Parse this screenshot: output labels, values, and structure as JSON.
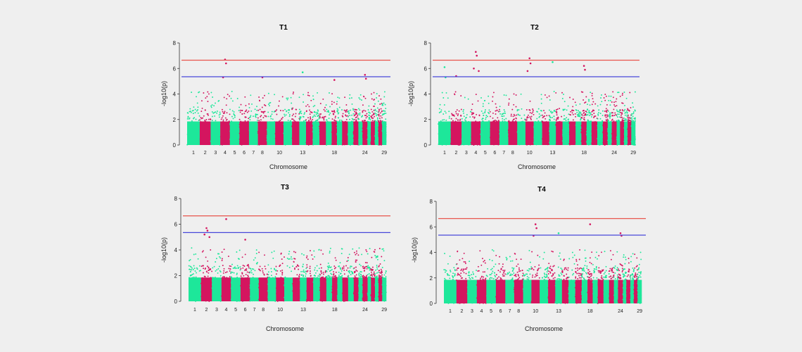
{
  "colors": {
    "background": "#efefef",
    "chr_odd": "#1de79a",
    "chr_even": "#d4155f",
    "genome_wide_line": "#e8544d",
    "suggestive_line": "#4747d9"
  },
  "chart_data": [
    {
      "type": "scatter",
      "subtype": "manhattan",
      "title": "T1",
      "xlabel": "Chromosome",
      "ylabel": "-log10(p)",
      "ylim": [
        0,
        8
      ],
      "yticks": [
        0,
        2,
        4,
        6,
        8
      ],
      "thresholds": [
        6.65,
        5.35
      ],
      "chromosome_labels": [
        "1",
        "2",
        "3",
        "4",
        "5",
        "6",
        "7",
        "8",
        "10",
        "13",
        "18",
        "24",
        "29"
      ],
      "peaks": [
        {
          "chromosome": "4",
          "values": [
            6.7,
            6.4,
            5.3
          ]
        },
        {
          "chromosome": "8",
          "values": [
            5.3
          ]
        },
        {
          "chromosome": "13",
          "values": [
            5.7
          ]
        },
        {
          "chromosome": "18",
          "values": [
            5.1
          ]
        },
        {
          "chromosome": "24",
          "values": [
            5.5,
            5.2
          ]
        }
      ]
    },
    {
      "type": "scatter",
      "subtype": "manhattan",
      "title": "T2",
      "xlabel": "Chromosome",
      "ylabel": "-log10(p)",
      "ylim": [
        0,
        8
      ],
      "yticks": [
        0,
        2,
        4,
        6,
        8
      ],
      "thresholds": [
        6.65,
        5.35
      ],
      "chromosome_labels": [
        "1",
        "2",
        "3",
        "4",
        "5",
        "6",
        "7",
        "8",
        "10",
        "13",
        "18",
        "24",
        "29"
      ],
      "peaks": [
        {
          "chromosome": "1",
          "values": [
            6.1,
            5.3
          ]
        },
        {
          "chromosome": "2",
          "values": [
            5.4
          ]
        },
        {
          "chromosome": "4",
          "values": [
            7.3,
            7.0,
            6.0,
            5.8
          ]
        },
        {
          "chromosome": "10",
          "values": [
            6.8,
            6.4,
            5.8
          ]
        },
        {
          "chromosome": "13",
          "values": [
            6.5
          ]
        },
        {
          "chromosome": "18",
          "values": [
            6.2,
            5.9
          ]
        }
      ]
    },
    {
      "type": "scatter",
      "subtype": "manhattan",
      "title": "T3",
      "xlabel": "Chromosome",
      "ylabel": "-log10(p)",
      "ylim": [
        0,
        8
      ],
      "yticks": [
        0,
        2,
        4,
        6,
        8
      ],
      "thresholds": [
        6.65,
        5.35
      ],
      "chromosome_labels": [
        "1",
        "2",
        "3",
        "4",
        "5",
        "6",
        "7",
        "8",
        "10",
        "13",
        "18",
        "24",
        "29"
      ],
      "peaks": [
        {
          "chromosome": "2",
          "values": [
            5.7,
            5.5,
            5.2,
            5.0
          ]
        },
        {
          "chromosome": "4",
          "values": [
            6.4
          ]
        },
        {
          "chromosome": "6",
          "values": [
            4.8
          ]
        }
      ]
    },
    {
      "type": "scatter",
      "subtype": "manhattan",
      "title": "T4",
      "xlabel": "Chromosome",
      "ylabel": "-log10(p)",
      "ylim": [
        0,
        8
      ],
      "yticks": [
        0,
        2,
        4,
        6,
        8
      ],
      "thresholds": [
        6.65,
        5.35
      ],
      "chromosome_labels": [
        "1",
        "2",
        "3",
        "4",
        "5",
        "6",
        "7",
        "8",
        "10",
        "13",
        "18",
        "24",
        "29"
      ],
      "peaks": [
        {
          "chromosome": "10",
          "values": [
            6.2,
            5.9,
            5.3
          ]
        },
        {
          "chromosome": "13",
          "values": [
            5.5
          ]
        },
        {
          "chromosome": "18",
          "values": [
            6.2
          ]
        },
        {
          "chromosome": "24",
          "values": [
            5.5,
            5.3
          ]
        }
      ]
    }
  ]
}
